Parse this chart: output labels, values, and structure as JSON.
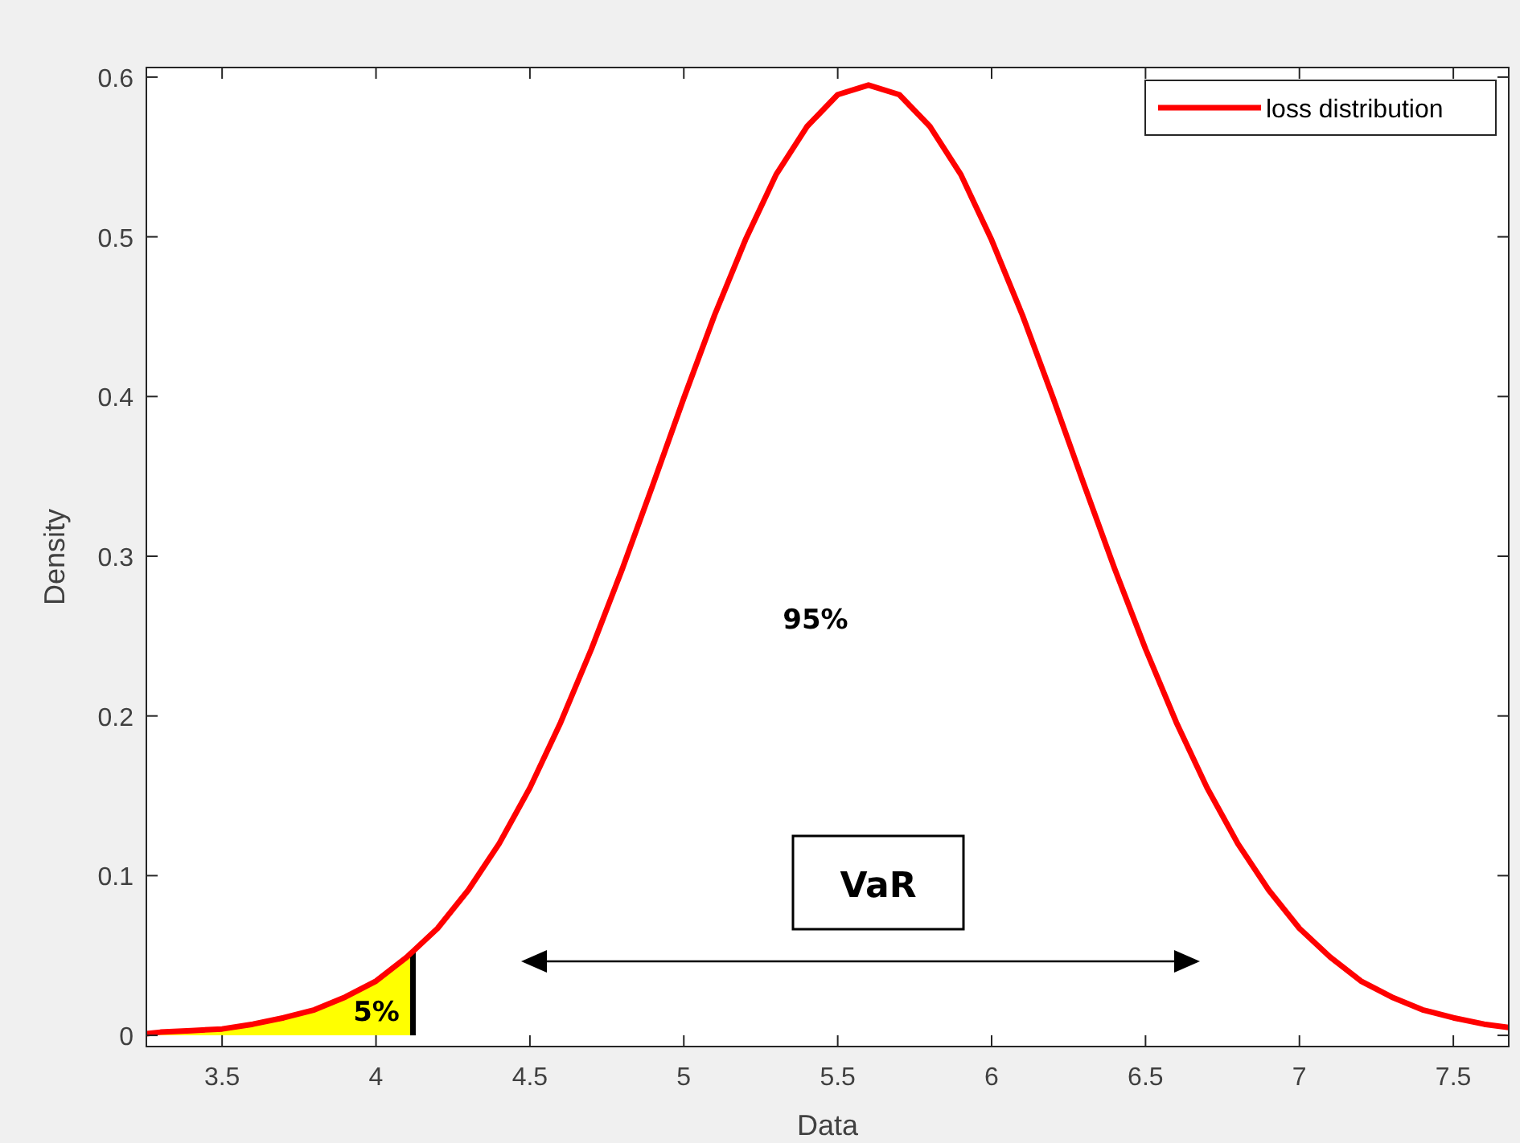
{
  "chart_data": {
    "type": "line",
    "xlabel": "Data",
    "ylabel": "Density",
    "xlim": [
      3.254,
      7.68
    ],
    "ylim": [
      -0.007,
      0.606
    ],
    "xticks": [
      3.5,
      4,
      4.5,
      5,
      5.5,
      6,
      6.5,
      7,
      7.5
    ],
    "yticks": [
      0,
      0.1,
      0.2,
      0.3,
      0.4,
      0.5,
      0.6
    ],
    "legend": "top right",
    "grid": false,
    "series": [
      {
        "type": "area",
        "color": "#ffff00",
        "x": [
          3.254,
          3.3,
          3.4,
          3.5,
          3.6,
          3.7,
          3.8,
          3.9,
          4.0,
          4.1,
          4.12
        ],
        "values": [
          0.001,
          0.002,
          0.003,
          0.004,
          0.007,
          0.011,
          0.016,
          0.024,
          0.034,
          0.049,
          0.052
        ]
      },
      {
        "color": "#000000",
        "x": [
          4.12,
          4.12
        ],
        "values": [
          0,
          0.052
        ]
      },
      {
        "name": "loss distribution",
        "color": "#ff0000",
        "x": [
          3.254,
          3.3,
          3.4,
          3.5,
          3.6,
          3.7,
          3.8,
          3.9,
          4.0,
          4.1,
          4.2,
          4.3,
          4.4,
          4.5,
          4.6,
          4.7,
          4.8,
          4.9,
          5.0,
          5.1,
          5.2,
          5.3,
          5.4,
          5.5,
          5.6,
          5.7,
          5.8,
          5.9,
          6.0,
          6.1,
          6.2,
          6.3,
          6.4,
          6.5,
          6.6,
          6.7,
          6.8,
          6.9,
          7.0,
          7.1,
          7.2,
          7.3,
          7.4,
          7.5,
          7.6,
          7.68
        ],
        "values": [
          0.001,
          0.002,
          0.003,
          0.004,
          0.007,
          0.011,
          0.016,
          0.024,
          0.034,
          0.049,
          0.067,
          0.091,
          0.12,
          0.155,
          0.196,
          0.242,
          0.292,
          0.345,
          0.399,
          0.451,
          0.498,
          0.539,
          0.569,
          0.589,
          0.595,
          0.589,
          0.569,
          0.539,
          0.498,
          0.451,
          0.399,
          0.345,
          0.292,
          0.242,
          0.196,
          0.155,
          0.12,
          0.091,
          0.067,
          0.049,
          0.034,
          0.024,
          0.016,
          0.011,
          0.007,
          0.005
        ]
      }
    ],
    "annotations": [
      "95%",
      "5%",
      "VaR"
    ]
  }
}
